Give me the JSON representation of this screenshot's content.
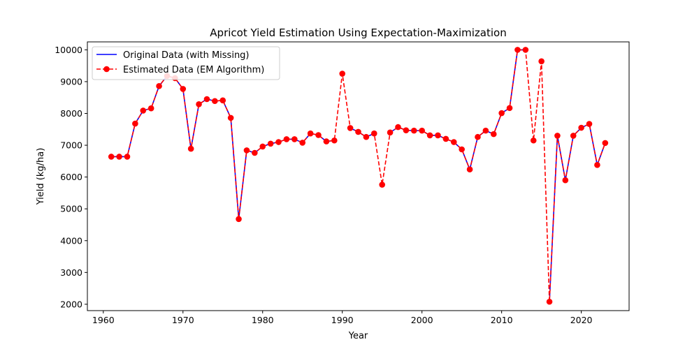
{
  "chart_data": {
    "type": "line",
    "title": "Apricot Yield Estimation Using Expectation-Maximization",
    "xlabel": "Year",
    "ylabel": "Yield (kg/ha)",
    "xlim": [
      1958,
      2026
    ],
    "ylim": [
      1800,
      10250
    ],
    "xticks": [
      1960,
      1970,
      1980,
      1990,
      2000,
      2010,
      2020
    ],
    "yticks": [
      2000,
      3000,
      4000,
      5000,
      6000,
      7000,
      8000,
      9000,
      10000
    ],
    "grid": false,
    "legend_position": "top-left",
    "x": [
      1961,
      1962,
      1963,
      1964,
      1965,
      1966,
      1967,
      1968,
      1969,
      1970,
      1971,
      1972,
      1973,
      1974,
      1975,
      1976,
      1977,
      1978,
      1979,
      1980,
      1981,
      1982,
      1983,
      1984,
      1985,
      1986,
      1987,
      1988,
      1989,
      1990,
      1991,
      1992,
      1993,
      1994,
      1995,
      1996,
      1997,
      1998,
      1999,
      2000,
      2001,
      2002,
      2003,
      2004,
      2005,
      2006,
      2007,
      2008,
      2009,
      2010,
      2011,
      2012,
      2013,
      2014,
      2015,
      2016,
      2017,
      2018,
      2019,
      2020,
      2021,
      2022,
      2023
    ],
    "series": [
      {
        "name": "Original Data (with Missing)",
        "color": "#0000ff",
        "style": "solid",
        "values": [
          6640,
          6640,
          6640,
          7680,
          8090,
          8160,
          8860,
          9180,
          9110,
          8770,
          6890,
          8290,
          8450,
          8390,
          8410,
          7860,
          4680,
          6840,
          6760,
          6960,
          7050,
          7100,
          7190,
          7190,
          7080,
          7370,
          7320,
          7120,
          7150,
          null,
          7540,
          7420,
          7260,
          7370,
          null,
          7400,
          7570,
          7470,
          7460,
          7460,
          7310,
          7310,
          7200,
          7100,
          6870,
          6240,
          7260,
          7460,
          7350,
          8010,
          8170,
          10000,
          10000,
          null,
          null,
          2080,
          7300,
          5900,
          7300,
          7550,
          7670,
          6380,
          7070
        ]
      },
      {
        "name": "Estimated Data (EM Algorithm)",
        "color": "#ff0000",
        "style": "dashed",
        "marker": "circle",
        "values": [
          6640,
          6640,
          6640,
          7680,
          8090,
          8160,
          8860,
          9180,
          9110,
          8770,
          6890,
          8290,
          8450,
          8390,
          8410,
          7860,
          4680,
          6840,
          6760,
          6960,
          7050,
          7100,
          7190,
          7190,
          7080,
          7370,
          7320,
          7120,
          7150,
          9250,
          7540,
          7420,
          7260,
          7370,
          5760,
          7400,
          7570,
          7470,
          7460,
          7460,
          7310,
          7310,
          7200,
          7100,
          6870,
          6240,
          7260,
          7460,
          7350,
          8010,
          8170,
          10000,
          10000,
          7150,
          9640,
          2080,
          7300,
          5900,
          7300,
          7550,
          7670,
          6380,
          7070
        ]
      }
    ]
  }
}
